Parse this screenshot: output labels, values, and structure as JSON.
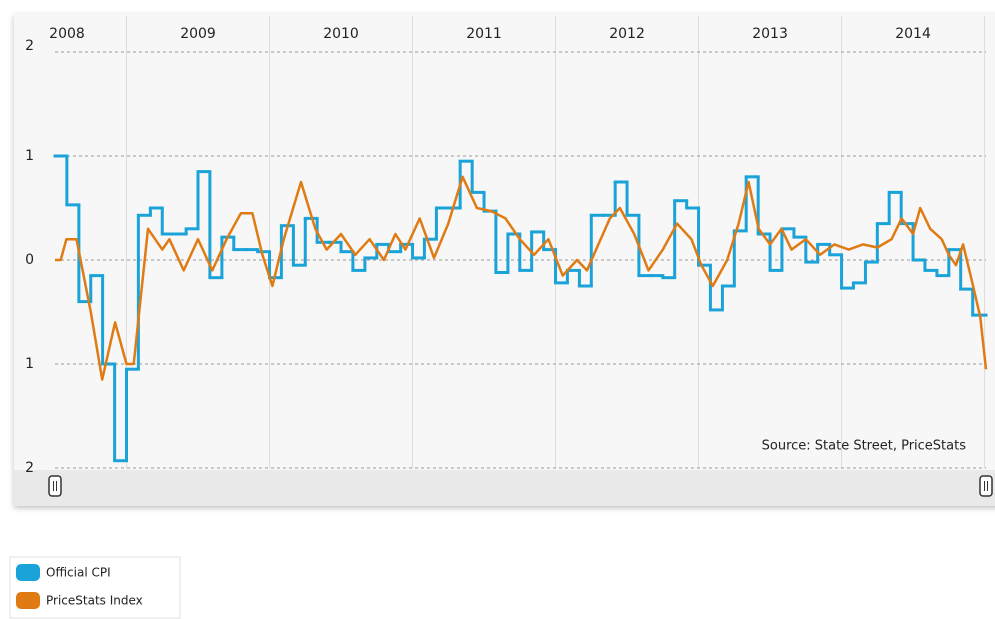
{
  "chart_data": {
    "type": "line",
    "source": "Source: State Street, PriceStats",
    "xlim": [
      2008,
      2014.51
    ],
    "xticks": [
      2008,
      2009,
      2010,
      2011,
      2012,
      2013,
      2014
    ],
    "ylim": [
      -2,
      2
    ],
    "yticks": [
      {
        "value": -2,
        "label": "2"
      },
      {
        "value": -1,
        "label": "1"
      },
      0,
      1,
      2
    ],
    "grid": true,
    "legend": "bottom-left",
    "series": [
      {
        "name": "Official CPI",
        "color": "#1aa3d9",
        "step": true,
        "x": [
          2008,
          2008.083,
          2008.167,
          2008.25,
          2008.333,
          2008.417,
          2008.5,
          2008.583,
          2008.667,
          2008.75,
          2008.833,
          2008.917,
          2009,
          2009.083,
          2009.167,
          2009.25,
          2009.333,
          2009.417,
          2009.5,
          2009.583,
          2009.667,
          2009.75,
          2009.833,
          2009.917,
          2010,
          2010.083,
          2010.167,
          2010.25,
          2010.333,
          2010.417,
          2010.5,
          2010.583,
          2010.667,
          2010.75,
          2010.833,
          2010.917,
          2011,
          2011.083,
          2011.167,
          2011.25,
          2011.333,
          2011.417,
          2011.5,
          2011.583,
          2011.667,
          2011.75,
          2011.833,
          2011.917,
          2012,
          2012.083,
          2012.167,
          2012.25,
          2012.333,
          2012.417,
          2012.5,
          2012.583,
          2012.667,
          2012.75,
          2012.833,
          2012.917,
          2013,
          2013.083,
          2013.167,
          2013.25,
          2013.333,
          2013.417,
          2013.5,
          2013.583,
          2013.667,
          2013.75,
          2013.833,
          2013.917,
          2014,
          2014.083,
          2014.167,
          2014.25,
          2014.333,
          2014.417
        ],
        "values": [
          1.0,
          0.53,
          -0.4,
          -0.15,
          -1.0,
          -1.93,
          -1.05,
          0.43,
          0.5,
          0.25,
          0.25,
          0.3,
          0.85,
          -0.17,
          0.22,
          0.1,
          0.1,
          0.08,
          -0.17,
          0.33,
          -0.05,
          0.4,
          0.17,
          0.17,
          0.08,
          -0.1,
          0.02,
          0.15,
          0.08,
          0.15,
          0.02,
          0.2,
          0.5,
          0.5,
          0.95,
          0.65,
          0.47,
          -0.12,
          0.25,
          -0.1,
          0.27,
          0.1,
          -0.22,
          -0.1,
          -0.25,
          0.43,
          0.43,
          0.75,
          0.43,
          -0.15,
          -0.15,
          -0.17,
          0.57,
          0.5,
          -0.05,
          -0.48,
          -0.25,
          0.28,
          0.8,
          0.25,
          -0.1,
          0.3,
          0.22,
          -0.02,
          0.15,
          0.05,
          -0.27,
          -0.22,
          -0.02,
          0.35,
          0.65,
          0.35,
          0.0,
          -0.1,
          -0.15,
          0.1,
          -0.28,
          -0.53
        ]
      },
      {
        "name": "PriceStats Index",
        "color": "#e07b14",
        "x": [
          2008,
          2008.04,
          2008.08,
          2008.15,
          2008.25,
          2008.33,
          2008.42,
          2008.5,
          2008.55,
          2008.65,
          2008.75,
          2008.8,
          2008.9,
          2009,
          2009.1,
          2009.2,
          2009.3,
          2009.38,
          2009.45,
          2009.52,
          2009.6,
          2009.72,
          2009.82,
          2009.9,
          2010,
          2010.1,
          2010.2,
          2010.3,
          2010.38,
          2010.45,
          2010.55,
          2010.65,
          2010.75,
          2010.85,
          2010.95,
          2011.05,
          2011.15,
          2011.25,
          2011.35,
          2011.45,
          2011.55,
          2011.65,
          2011.72,
          2011.8,
          2011.88,
          2011.95,
          2012.05,
          2012.15,
          2012.25,
          2012.35,
          2012.45,
          2012.52,
          2012.6,
          2012.7,
          2012.78,
          2012.85,
          2012.92,
          2013,
          2013.08,
          2013.15,
          2013.25,
          2013.35,
          2013.45,
          2013.55,
          2013.65,
          2013.75,
          2013.85,
          2013.92,
          2014,
          2014.05,
          2014.12,
          2014.2,
          2014.25,
          2014.3,
          2014.35,
          2014.42,
          2014.47,
          2014.51
        ],
        "values": [
          0,
          0,
          0.2,
          0.2,
          -0.5,
          -1.15,
          -0.6,
          -1.0,
          -1.0,
          0.3,
          0.1,
          0.2,
          -0.1,
          0.2,
          -0.1,
          0.2,
          0.45,
          0.45,
          0.05,
          -0.25,
          0.2,
          0.75,
          0.3,
          0.1,
          0.25,
          0.05,
          0.2,
          0.0,
          0.25,
          0.1,
          0.4,
          0.02,
          0.35,
          0.8,
          0.5,
          0.47,
          0.4,
          0.2,
          0.05,
          0.2,
          -0.15,
          0.0,
          -0.1,
          0.15,
          0.4,
          0.5,
          0.25,
          -0.1,
          0.1,
          0.35,
          0.2,
          -0.05,
          -0.25,
          0.0,
          0.35,
          0.75,
          0.3,
          0.15,
          0.3,
          0.1,
          0.2,
          0.05,
          0.15,
          0.1,
          0.15,
          0.12,
          0.2,
          0.4,
          0.25,
          0.5,
          0.3,
          0.2,
          0.05,
          -0.05,
          0.15,
          -0.25,
          -0.55,
          -1.05
        ]
      }
    ]
  }
}
